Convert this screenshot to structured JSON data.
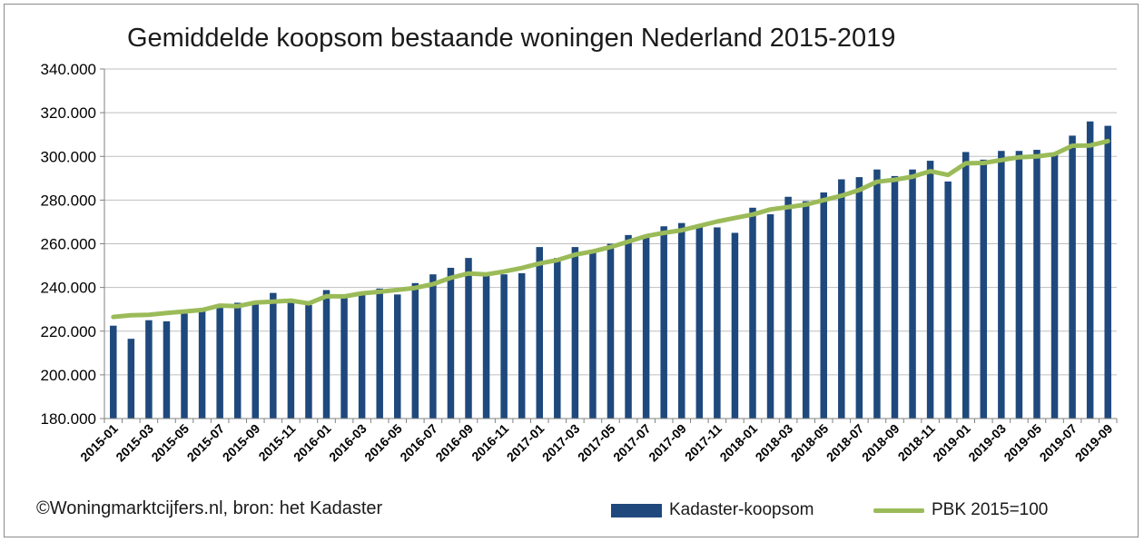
{
  "chart_data": {
    "type": "bar",
    "title": "Gemiddelde koopsom bestaande woningen Nederland 2015-2019",
    "xlabel": "",
    "ylabel": "",
    "ylim": [
      180000,
      340000
    ],
    "ytick_labels": [
      "180.000",
      "200.000",
      "220.000",
      "240.000",
      "260.000",
      "280.000",
      "300.000",
      "320.000",
      "340.000"
    ],
    "ytick_values": [
      180000,
      200000,
      220000,
      240000,
      260000,
      280000,
      300000,
      320000,
      340000
    ],
    "grid": true,
    "legend_position": "bottom-right",
    "categories": [
      "2015-01",
      "2015-02",
      "2015-03",
      "2015-04",
      "2015-05",
      "2015-06",
      "2015-07",
      "2015-08",
      "2015-09",
      "2015-10",
      "2015-11",
      "2015-12",
      "2016-01",
      "2016-02",
      "2016-03",
      "2016-04",
      "2016-05",
      "2016-06",
      "2016-07",
      "2016-08",
      "2016-09",
      "2016-10",
      "2016-11",
      "2016-12",
      "2017-01",
      "2017-02",
      "2017-03",
      "2017-04",
      "2017-05",
      "2017-06",
      "2017-07",
      "2017-08",
      "2017-09",
      "2017-10",
      "2017-11",
      "2017-12",
      "2018-01",
      "2018-02",
      "2018-03",
      "2018-04",
      "2018-05",
      "2018-06",
      "2018-07",
      "2018-08",
      "2018-09",
      "2018-10",
      "2018-11",
      "2018-12",
      "2019-01",
      "2019-02",
      "2019-03",
      "2019-04",
      "2019-05",
      "2019-06",
      "2019-07",
      "2019-08",
      "2019-09"
    ],
    "x_tick_labels": [
      "2015-01",
      "2015-03",
      "2015-05",
      "2015-07",
      "2015-09",
      "2015-11",
      "2016-01",
      "2016-03",
      "2016-05",
      "2016-07",
      "2016-09",
      "2016-11",
      "2017-01",
      "2017-03",
      "2017-05",
      "2017-07",
      "2017-09",
      "2017-11",
      "2018-01",
      "2018-03",
      "2018-05",
      "2018-07",
      "2018-09",
      "2018-11",
      "2019-01",
      "2019-03",
      "2019-05",
      "2019-07",
      "2019-09"
    ],
    "series": [
      {
        "name": "Kadaster-koopsom",
        "type": "bar",
        "color": "#1f497d",
        "values": [
          222500,
          216500,
          225000,
          224500,
          228000,
          229000,
          232000,
          233000,
          232500,
          237500,
          233000,
          232000,
          238800,
          235500,
          236500,
          239500,
          236800,
          242000,
          246000,
          249000,
          253500,
          246000,
          246000,
          246500,
          258500,
          253500,
          258500,
          256500,
          260000,
          264000,
          263500,
          268000,
          269500,
          268800,
          267500,
          265000,
          276500,
          273500,
          281500,
          279500,
          283500,
          289500,
          290500,
          294000,
          291000,
          294000,
          298000,
          288500,
          302000,
          298500,
          302500,
          302500,
          303000,
          301000,
          309500,
          316000,
          314000
        ]
      },
      {
        "name": "PBK 2015=100",
        "type": "line",
        "color": "#9bbb59",
        "values": [
          226500,
          227300,
          227500,
          228300,
          229000,
          229700,
          231700,
          231400,
          233100,
          233500,
          234000,
          232700,
          236000,
          235900,
          237300,
          238000,
          238900,
          239800,
          241500,
          244400,
          246400,
          246000,
          247300,
          248900,
          251000,
          252500,
          255000,
          256500,
          258500,
          261000,
          263500,
          265000,
          266200,
          268200,
          270200,
          271800,
          273400,
          275700,
          276800,
          277900,
          280000,
          282000,
          284600,
          288400,
          289300,
          290700,
          293200,
          291500,
          296800,
          297000,
          298300,
          299600,
          300000,
          301000,
          304900,
          305000,
          307000
        ]
      }
    ]
  },
  "footer": {
    "source": "©Woningmarktcijfers.nl, bron: het Kadaster"
  }
}
